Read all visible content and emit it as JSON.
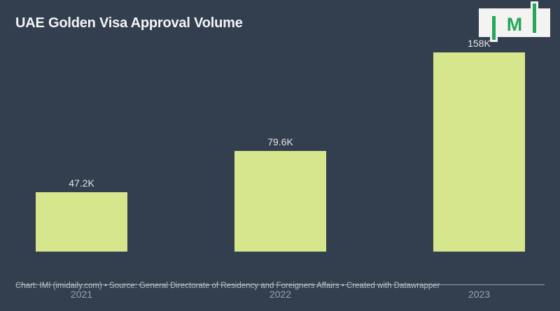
{
  "header": {
    "title": "UAE Golden Visa Approval Volume"
  },
  "logo": {
    "brand": "IMI",
    "monogram": "M"
  },
  "chart_data": {
    "type": "bar",
    "title": "UAE Golden Visa Approval Volume",
    "categories": [
      "2021",
      "2022",
      "2023"
    ],
    "values": [
      47200,
      79600,
      158000
    ],
    "value_labels": [
      "47.2K",
      "79.6K",
      "158K"
    ],
    "xlabel": "",
    "ylabel": "",
    "ylim": [
      0,
      158000
    ],
    "grid": false,
    "legend": false,
    "bar_color": "#d6e68c"
  },
  "footer": {
    "text": "Chart: IMI (imidaily.com) • Source: General Directorate of Residency and Foreigners Affairs • Created with Datawrapper"
  },
  "colors": {
    "background": "#333e4e",
    "bar": "#d6e68c",
    "axis_line": "#98a0a9",
    "title_text": "#f3f5f6",
    "value_label_text": "#e3e6e9",
    "tick_label_text": "#9aa3af",
    "footer_text": "#b9c0c8",
    "logo_green": "#27a75b",
    "logo_background": "#f3f3f1"
  }
}
